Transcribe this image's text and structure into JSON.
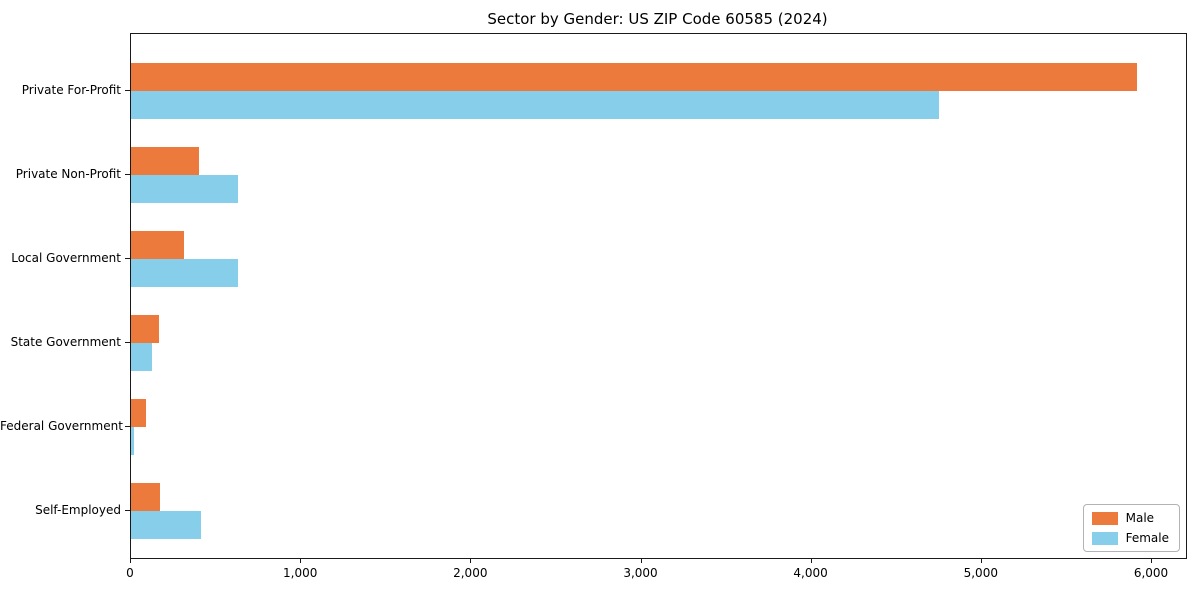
{
  "chart_data": {
    "type": "bar",
    "orientation": "horizontal",
    "title": "Sector by Gender: US ZIP Code 60585 (2024)",
    "categories": [
      "Private For-Profit",
      "Private Non-Profit",
      "Local Government",
      "State Government",
      "Federal Government",
      "Self-Employed"
    ],
    "series": [
      {
        "name": "Male",
        "color": "#EC7A3D",
        "values": [
          5910,
          400,
          310,
          165,
          85,
          168
        ]
      },
      {
        "name": "Female",
        "color": "#87CEEB",
        "values": [
          4750,
          628,
          630,
          122,
          15,
          412
        ]
      }
    ],
    "xlabel": "",
    "ylabel": "",
    "xlim": [
      0,
      6200
    ],
    "xticks": {
      "values": [
        0,
        1000,
        2000,
        3000,
        4000,
        5000,
        6000
      ],
      "labels": [
        "0",
        "1,000",
        "2,000",
        "3,000",
        "4,000",
        "5,000",
        "6,000"
      ]
    },
    "grid": false,
    "legend": {
      "position": "lower right"
    },
    "colors": {
      "axis": "#1a1a1a",
      "legend_border": "#b3b3b3",
      "background": "#ffffff"
    }
  }
}
